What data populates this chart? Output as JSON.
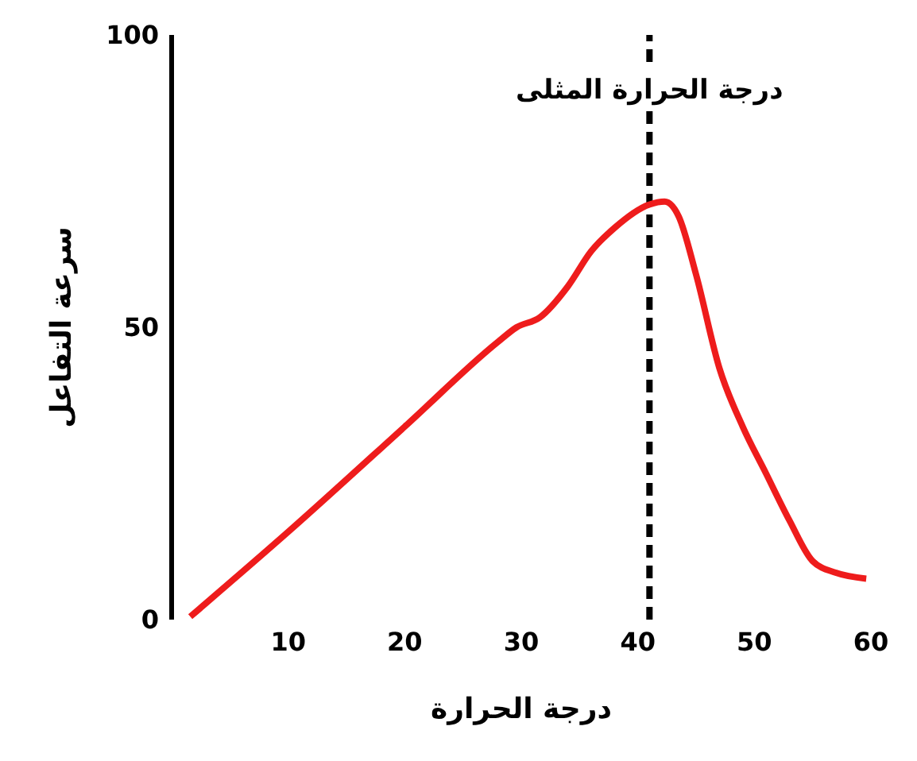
{
  "chart_data": {
    "type": "line",
    "xlabel": "درجة الحرارة",
    "ylabel": "سرعة التفاعل",
    "x": [
      1.6,
      10,
      20,
      28,
      29.6,
      31.6,
      34,
      36,
      38,
      41,
      42.3,
      43.5,
      45,
      47,
      49,
      51,
      53,
      55,
      57,
      59.6
    ],
    "series": [
      {
        "color": "#ee1c1c",
        "values": [
          0.5,
          15,
          33,
          47.5,
          50,
          51.7,
          57,
          63,
          67,
          71,
          71.5,
          69,
          59,
          43,
          33,
          25,
          17,
          10,
          8,
          7
        ]
      }
    ],
    "xlim": [
      0,
      60
    ],
    "xticks": [
      10,
      20,
      30,
      40,
      50,
      60
    ],
    "ylim": [
      0,
      100
    ],
    "yticks": [
      0,
      50,
      100
    ],
    "marker": "none",
    "line_style": "solid",
    "ref_lines": [
      {
        "axis": "x",
        "value": 41,
        "label": "درجة الحرارة المثلى",
        "line_style": "dashed",
        "color": "#000000"
      }
    ]
  }
}
